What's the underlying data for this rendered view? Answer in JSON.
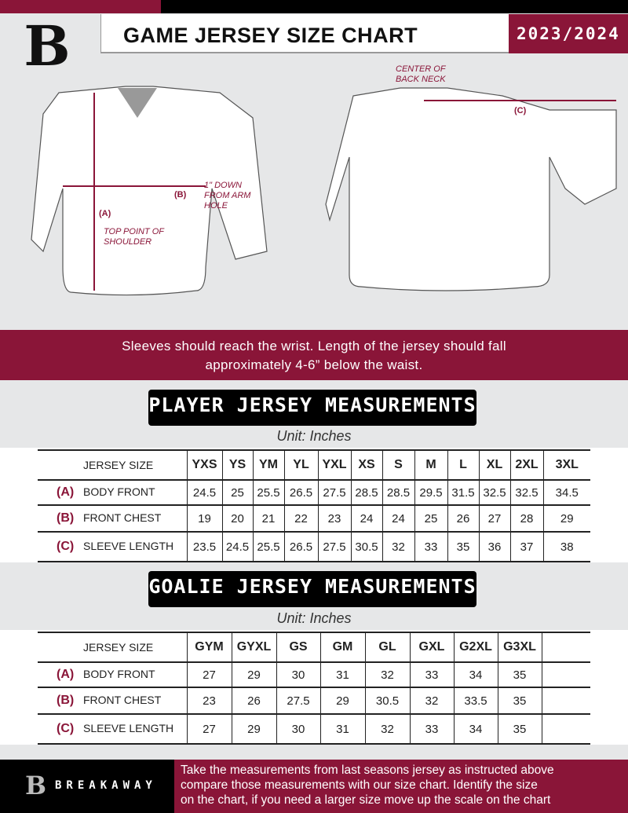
{
  "header": {
    "title": "GAME JERSEY SIZE CHART",
    "season": "2023/2024",
    "brand": "BREAKAWAY",
    "logo_letter": "B"
  },
  "colors": {
    "accent": "#8a1538",
    "dark": "#000000"
  },
  "diagram": {
    "center_back_neck": "CENTER OF BACK NECK",
    "a": "(A)",
    "b": "(B)",
    "c": "(C)",
    "arm_hole": "1\" DOWN FROM ARM HOLE",
    "top_shoulder": "TOP POINT OF SHOULDER"
  },
  "banner": {
    "line1": "Sleeves should reach the wrist. Length of the jersey should fall",
    "line2": "approximately 4-6” below the waist."
  },
  "player": {
    "title": "PLAYER JERSEY MEASUREMENTS",
    "unit": "Unit: Inches",
    "header_label": "JERSEY SIZE",
    "sizes": [
      "YXS",
      "YS",
      "YM",
      "YL",
      "YXL",
      "XS",
      "S",
      "M",
      "L",
      "XL",
      "2XL",
      "3XL"
    ],
    "rows": [
      {
        "key": "(A)",
        "label": "BODY FRONT",
        "values": [
          "24.5",
          "25",
          "25.5",
          "26.5",
          "27.5",
          "28.5",
          "28.5",
          "29.5",
          "31.5",
          "32.5",
          "32.5",
          "34.5"
        ]
      },
      {
        "key": "(B)",
        "label": "FRONT CHEST",
        "values": [
          "19",
          "20",
          "21",
          "22",
          "23",
          "24",
          "24",
          "25",
          "26",
          "27",
          "28",
          "29"
        ]
      },
      {
        "key": "(C)",
        "label": "SLEEVE LENGTH",
        "values": [
          "23.5",
          "24.5",
          "25.5",
          "26.5",
          "27.5",
          "30.5",
          "32",
          "33",
          "35",
          "36",
          "37",
          "38"
        ]
      }
    ]
  },
  "goalie": {
    "title": "GOALIE JERSEY MEASUREMENTS",
    "unit": "Unit: Inches",
    "header_label": "JERSEY SIZE",
    "sizes": [
      "GYM",
      "GYXL",
      "GS",
      "GM",
      "GL",
      "GXL",
      "G2XL",
      "G3XL",
      ""
    ],
    "rows": [
      {
        "key": "(A)",
        "label": "BODY FRONT",
        "values": [
          "27",
          "29",
          "30",
          "31",
          "32",
          "33",
          "34",
          "35",
          ""
        ]
      },
      {
        "key": "(B)",
        "label": "FRONT CHEST",
        "values": [
          "23",
          "26",
          "27.5",
          "29",
          "30.5",
          "32",
          "33.5",
          "35",
          ""
        ]
      },
      {
        "key": "(C)",
        "label": "SLEEVE LENGTH",
        "values": [
          "27",
          "29",
          "30",
          "31",
          "32",
          "33",
          "34",
          "35",
          ""
        ]
      }
    ]
  },
  "footer": {
    "line1": "Take the measurements from last seasons jersey as instructed above",
    "line2": "compare those measurements  with our size chart. Identify the size",
    "line3": "on the chart, if you need a larger size move up the scale on the chart"
  }
}
